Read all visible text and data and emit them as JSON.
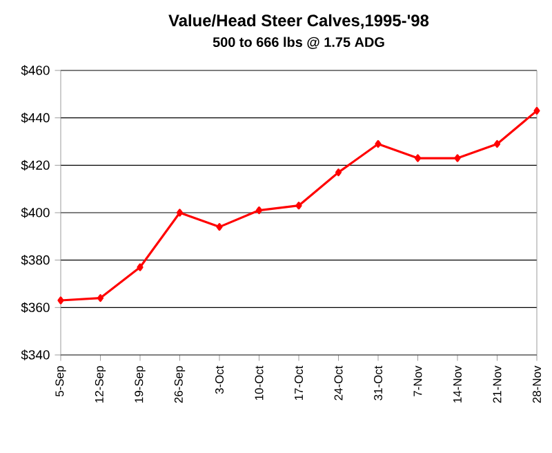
{
  "chart_data": {
    "type": "line",
    "title": "Value/Head Steer Calves,1995-'98",
    "subtitle": "500 to 666 lbs @ 1.75 ADG",
    "categories": [
      "5-Sep",
      "12-Sep",
      "19-Sep",
      "26-Sep",
      "3-Oct",
      "10-Oct",
      "17-Oct",
      "24-Oct",
      "31-Oct",
      "7-Nov",
      "14-Nov",
      "21-Nov",
      "28-Nov"
    ],
    "series": [
      {
        "color": "#ff0000",
        "values": [
          363,
          364,
          377,
          400,
          394,
          401,
          403,
          417,
          429,
          423,
          423,
          429,
          443
        ]
      }
    ],
    "ylim": [
      340,
      460
    ],
    "yticks": [
      {
        "value": 340,
        "label": "$340"
      },
      {
        "value": 360,
        "label": "$360"
      },
      {
        "value": 380,
        "label": "$380"
      },
      {
        "value": 400,
        "label": "$400"
      },
      {
        "value": 420,
        "label": "$420"
      },
      {
        "value": 440,
        "label": "$440"
      },
      {
        "value": 460,
        "label": "$460"
      }
    ],
    "grid": "y",
    "marker": "diamond",
    "line_style": "solid"
  }
}
